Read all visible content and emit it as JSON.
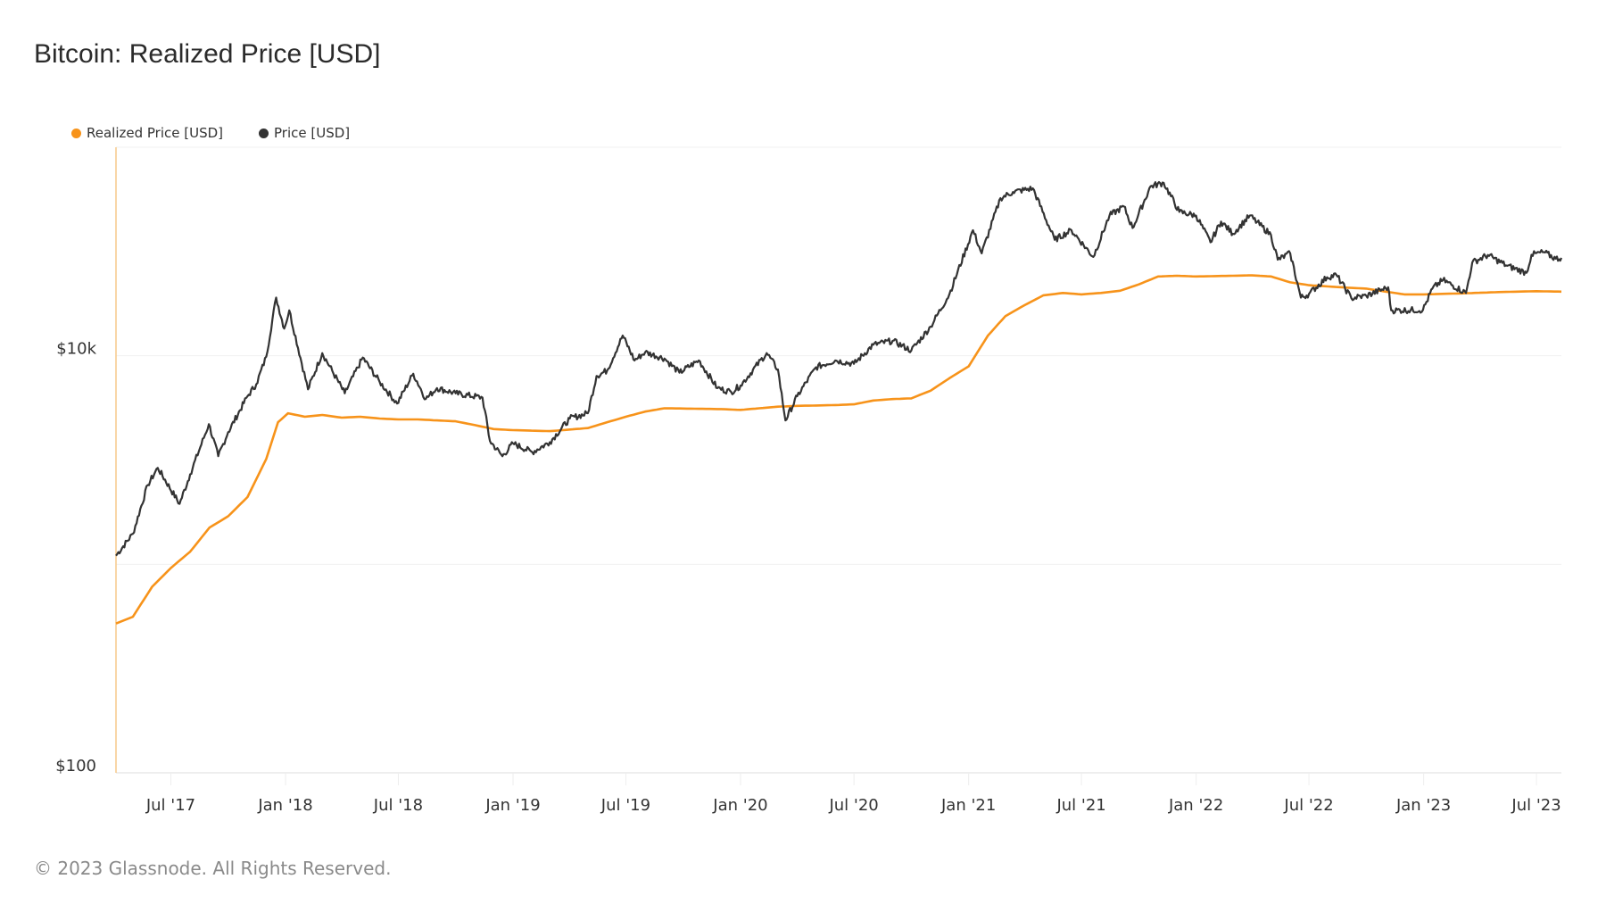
{
  "chart_data": {
    "type": "line",
    "title": "Bitcoin: Realized Price [USD]",
    "xlabel": "",
    "ylabel": "",
    "yscale": "log",
    "ylim": [
      100,
      100000
    ],
    "xlim": [
      "2017-04-04",
      "2023-08-10"
    ],
    "grid": true,
    "legend_position": "top-left",
    "y_gridlines": [
      100,
      1000,
      10000,
      100000
    ],
    "y_ticks": [
      {
        "value": 10000,
        "label": "$10k"
      },
      {
        "value": 100,
        "label": "$100"
      }
    ],
    "x_ticks": [
      {
        "date": "2017-07-01",
        "label": "Jul '17"
      },
      {
        "date": "2018-01-01",
        "label": "Jan '18"
      },
      {
        "date": "2018-07-01",
        "label": "Jul '18"
      },
      {
        "date": "2019-01-01",
        "label": "Jan '19"
      },
      {
        "date": "2019-07-01",
        "label": "Jul '19"
      },
      {
        "date": "2020-01-01",
        "label": "Jan '20"
      },
      {
        "date": "2020-07-01",
        "label": "Jul '20"
      },
      {
        "date": "2021-01-01",
        "label": "Jan '21"
      },
      {
        "date": "2021-07-01",
        "label": "Jul '21"
      },
      {
        "date": "2022-01-01",
        "label": "Jan '22"
      },
      {
        "date": "2022-07-01",
        "label": "Jul '22"
      },
      {
        "date": "2023-01-01",
        "label": "Jan '23"
      },
      {
        "date": "2023-07-01",
        "label": "Jul '23"
      }
    ],
    "series": [
      {
        "name": "Realized Price [USD]",
        "color": "#f7931a",
        "points": [
          [
            "2017-04-04",
            520
          ],
          [
            "2017-05-01",
            560
          ],
          [
            "2017-06-01",
            780
          ],
          [
            "2017-07-01",
            960
          ],
          [
            "2017-08-01",
            1150
          ],
          [
            "2017-09-01",
            1500
          ],
          [
            "2017-10-01",
            1700
          ],
          [
            "2017-11-01",
            2100
          ],
          [
            "2017-12-01",
            3200
          ],
          [
            "2017-12-20",
            4800
          ],
          [
            "2018-01-05",
            5300
          ],
          [
            "2018-02-01",
            5100
          ],
          [
            "2018-03-01",
            5200
          ],
          [
            "2018-04-01",
            5050
          ],
          [
            "2018-05-01",
            5100
          ],
          [
            "2018-06-01",
            5000
          ],
          [
            "2018-07-01",
            4950
          ],
          [
            "2018-08-01",
            4950
          ],
          [
            "2018-09-01",
            4900
          ],
          [
            "2018-10-01",
            4850
          ],
          [
            "2018-11-01",
            4650
          ],
          [
            "2018-12-01",
            4450
          ],
          [
            "2019-01-01",
            4400
          ],
          [
            "2019-03-01",
            4350
          ],
          [
            "2019-05-01",
            4500
          ],
          [
            "2019-06-01",
            4800
          ],
          [
            "2019-07-01",
            5100
          ],
          [
            "2019-08-01",
            5400
          ],
          [
            "2019-09-01",
            5600
          ],
          [
            "2019-12-01",
            5550
          ],
          [
            "2020-01-01",
            5500
          ],
          [
            "2020-03-01",
            5700
          ],
          [
            "2020-04-01",
            5750
          ],
          [
            "2020-06-01",
            5800
          ],
          [
            "2020-07-01",
            5850
          ],
          [
            "2020-08-01",
            6100
          ],
          [
            "2020-09-01",
            6200
          ],
          [
            "2020-10-01",
            6250
          ],
          [
            "2020-11-01",
            6800
          ],
          [
            "2020-12-01",
            7800
          ],
          [
            "2021-01-01",
            8900
          ],
          [
            "2021-02-01",
            12500
          ],
          [
            "2021-03-01",
            15500
          ],
          [
            "2021-04-01",
            17500
          ],
          [
            "2021-05-01",
            19500
          ],
          [
            "2021-06-01",
            20000
          ],
          [
            "2021-07-01",
            19700
          ],
          [
            "2021-08-01",
            20000
          ],
          [
            "2021-09-01",
            20500
          ],
          [
            "2021-10-01",
            22000
          ],
          [
            "2021-11-01",
            24000
          ],
          [
            "2021-12-01",
            24200
          ],
          [
            "2022-01-01",
            24000
          ],
          [
            "2022-03-01",
            24200
          ],
          [
            "2022-04-01",
            24300
          ],
          [
            "2022-05-01",
            24000
          ],
          [
            "2022-06-01",
            22500
          ],
          [
            "2022-07-01",
            21800
          ],
          [
            "2022-08-01",
            21500
          ],
          [
            "2022-09-01",
            21200
          ],
          [
            "2022-10-01",
            21000
          ],
          [
            "2022-11-01",
            20300
          ],
          [
            "2022-12-01",
            19700
          ],
          [
            "2023-01-01",
            19700
          ],
          [
            "2023-03-01",
            19900
          ],
          [
            "2023-05-01",
            20200
          ],
          [
            "2023-07-01",
            20400
          ],
          [
            "2023-08-10",
            20300
          ]
        ]
      },
      {
        "name": "Price [USD]",
        "color": "#333333",
        "points": [
          [
            "2017-04-04",
            1100
          ],
          [
            "2017-05-01",
            1400
          ],
          [
            "2017-05-25",
            2400
          ],
          [
            "2017-06-10",
            2900
          ],
          [
            "2017-07-15",
            1950
          ],
          [
            "2017-08-01",
            2700
          ],
          [
            "2017-08-31",
            4700
          ],
          [
            "2017-09-15",
            3300
          ],
          [
            "2017-10-01",
            4300
          ],
          [
            "2017-11-01",
            6400
          ],
          [
            "2017-11-15",
            7300
          ],
          [
            "2017-12-01",
            9900
          ],
          [
            "2017-12-17",
            19000
          ],
          [
            "2017-12-30",
            13500
          ],
          [
            "2018-01-07",
            16500
          ],
          [
            "2018-02-06",
            6900
          ],
          [
            "2018-03-01",
            10300
          ],
          [
            "2018-04-06",
            6600
          ],
          [
            "2018-05-05",
            9800
          ],
          [
            "2018-06-01",
            7500
          ],
          [
            "2018-06-29",
            5900
          ],
          [
            "2018-07-25",
            8200
          ],
          [
            "2018-08-14",
            6200
          ],
          [
            "2018-09-01",
            7000
          ],
          [
            "2018-10-01",
            6600
          ],
          [
            "2018-11-13",
            6300
          ],
          [
            "2018-11-25",
            3900
          ],
          [
            "2018-12-15",
            3300
          ],
          [
            "2019-01-01",
            3800
          ],
          [
            "2019-02-01",
            3450
          ],
          [
            "2019-03-01",
            3850
          ],
          [
            "2019-04-02",
            5000
          ],
          [
            "2019-05-01",
            5300
          ],
          [
            "2019-05-15",
            8000
          ],
          [
            "2019-06-01",
            8500
          ],
          [
            "2019-06-26",
            12500
          ],
          [
            "2019-07-15",
            9500
          ],
          [
            "2019-08-01",
            10400
          ],
          [
            "2019-09-01",
            9700
          ],
          [
            "2019-09-25",
            8300
          ],
          [
            "2019-10-26",
            9500
          ],
          [
            "2019-11-25",
            7000
          ],
          [
            "2019-12-17",
            6700
          ],
          [
            "2020-01-01",
            7200
          ],
          [
            "2020-02-12",
            10300
          ],
          [
            "2020-03-01",
            8600
          ],
          [
            "2020-03-13",
            4900
          ],
          [
            "2020-04-01",
            6400
          ],
          [
            "2020-05-01",
            8800
          ],
          [
            "2020-06-01",
            9500
          ],
          [
            "2020-07-01",
            9150
          ],
          [
            "2020-08-01",
            11300
          ],
          [
            "2020-09-01",
            11800
          ],
          [
            "2020-10-01",
            10600
          ],
          [
            "2020-11-01",
            13800
          ],
          [
            "2020-12-01",
            19700
          ],
          [
            "2021-01-08",
            40000
          ],
          [
            "2021-01-22",
            31000
          ],
          [
            "2021-02-21",
            57000
          ],
          [
            "2021-03-13",
            61000
          ],
          [
            "2021-04-14",
            63500
          ],
          [
            "2021-05-19",
            36000
          ],
          [
            "2021-06-15",
            40000
          ],
          [
            "2021-07-20",
            29800
          ],
          [
            "2021-08-15",
            47000
          ],
          [
            "2021-09-07",
            52000
          ],
          [
            "2021-09-21",
            41000
          ],
          [
            "2021-10-20",
            65000
          ],
          [
            "2021-11-10",
            67500
          ],
          [
            "2021-12-05",
            49000
          ],
          [
            "2022-01-01",
            47000
          ],
          [
            "2022-01-24",
            35000
          ],
          [
            "2022-02-10",
            44000
          ],
          [
            "2022-03-01",
            38500
          ],
          [
            "2022-03-28",
            47000
          ],
          [
            "2022-05-01",
            38000
          ],
          [
            "2022-05-12",
            28900
          ],
          [
            "2022-06-01",
            31000
          ],
          [
            "2022-06-18",
            19000
          ],
          [
            "2022-07-01",
            19800
          ],
          [
            "2022-07-30",
            23800
          ],
          [
            "2022-08-14",
            24400
          ],
          [
            "2022-09-07",
            18900
          ],
          [
            "2022-10-01",
            19400
          ],
          [
            "2022-11-05",
            21300
          ],
          [
            "2022-11-10",
            16500
          ],
          [
            "2022-12-31",
            16600
          ],
          [
            "2023-01-15",
            21000
          ],
          [
            "2023-02-01",
            23100
          ],
          [
            "2023-03-10",
            20000
          ],
          [
            "2023-03-20",
            28000
          ],
          [
            "2023-04-14",
            30400
          ],
          [
            "2023-05-15",
            27000
          ],
          [
            "2023-06-15",
            25000
          ],
          [
            "2023-06-23",
            30500
          ],
          [
            "2023-07-13",
            31400
          ],
          [
            "2023-08-01",
            29200
          ],
          [
            "2023-08-10",
            29500
          ]
        ]
      }
    ]
  },
  "header": {
    "title": "Bitcoin: Realized Price [USD]"
  },
  "legend": {
    "items": [
      {
        "label": "Realized Price [USD]",
        "color": "#f7931a"
      },
      {
        "label": "Price [USD]",
        "color": "#333333"
      }
    ]
  },
  "footer": {
    "copyright": "© 2023 Glassnode. All Rights Reserved."
  }
}
